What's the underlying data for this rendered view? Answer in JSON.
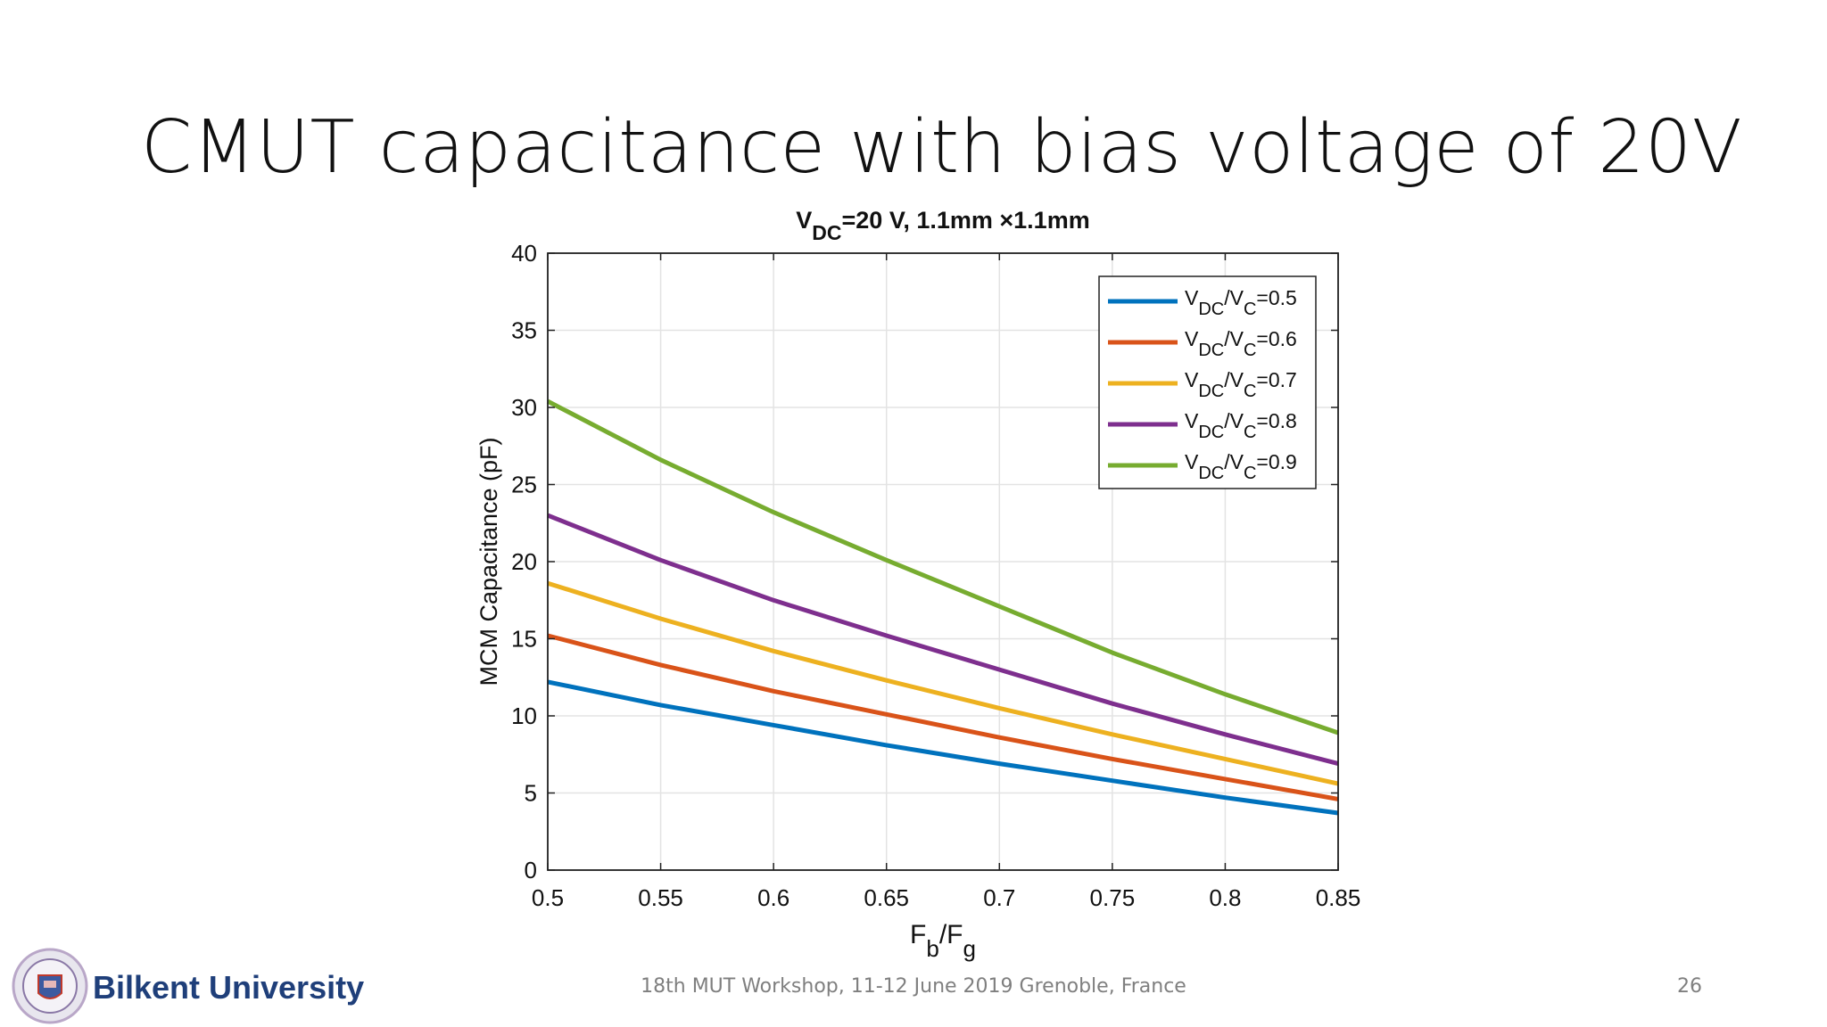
{
  "slide": {
    "title": "CMUT capacitance with bias voltage of 20V",
    "footer": "18th MUT Workshop, 11-12 June 2019 Grenoble, France",
    "page_number": "26",
    "logo_text": "Bilkent University"
  },
  "chart_data": {
    "type": "line",
    "title_parts": [
      "V",
      "DC",
      "=20 V, 1.1mm  ×1.1mm"
    ],
    "xlabel_parts": [
      "F",
      "b",
      "/F",
      "g"
    ],
    "ylabel": "MCM Capacitance (pF)",
    "xlim": [
      0.5,
      0.85
    ],
    "ylim": [
      0,
      40
    ],
    "xticks": [
      0.5,
      0.55,
      0.6,
      0.65,
      0.7,
      0.75,
      0.8,
      0.85
    ],
    "xtick_labels": [
      "0.5",
      "0.55",
      "0.6",
      "0.65",
      "0.7",
      "0.75",
      "0.8",
      "0.85"
    ],
    "yticks": [
      0,
      5,
      10,
      15,
      20,
      25,
      30,
      35,
      40
    ],
    "ytick_labels": [
      "0",
      "5",
      "10",
      "15",
      "20",
      "25",
      "30",
      "35",
      "40"
    ],
    "grid": true,
    "legend_position": "top-right",
    "x": [
      0.5,
      0.55,
      0.6,
      0.65,
      0.7,
      0.75,
      0.8,
      0.85
    ],
    "series": [
      {
        "legend_parts": [
          "V",
          "DC",
          "/V",
          "C",
          "=0.5"
        ],
        "color": "#0072bd",
        "values": [
          12.2,
          10.7,
          9.4,
          8.1,
          6.9,
          5.8,
          4.7,
          3.7
        ]
      },
      {
        "legend_parts": [
          "V",
          "DC",
          "/V",
          "C",
          "=0.6"
        ],
        "color": "#d95319",
        "values": [
          15.2,
          13.3,
          11.6,
          10.1,
          8.6,
          7.2,
          5.9,
          4.6
        ]
      },
      {
        "legend_parts": [
          "V",
          "DC",
          "/V",
          "C",
          "=0.7"
        ],
        "color": "#edb120",
        "values": [
          18.6,
          16.3,
          14.2,
          12.3,
          10.5,
          8.8,
          7.2,
          5.6
        ]
      },
      {
        "legend_parts": [
          "V",
          "DC",
          "/V",
          "C",
          "=0.8"
        ],
        "color": "#7e2f8e",
        "values": [
          23.0,
          20.1,
          17.5,
          15.2,
          13.0,
          10.8,
          8.8,
          6.9
        ]
      },
      {
        "legend_parts": [
          "V",
          "DC",
          "/V",
          "C",
          "=0.9"
        ],
        "color": "#77ac30",
        "values": [
          30.4,
          26.6,
          23.2,
          20.1,
          17.1,
          14.1,
          11.4,
          8.9
        ]
      }
    ]
  }
}
